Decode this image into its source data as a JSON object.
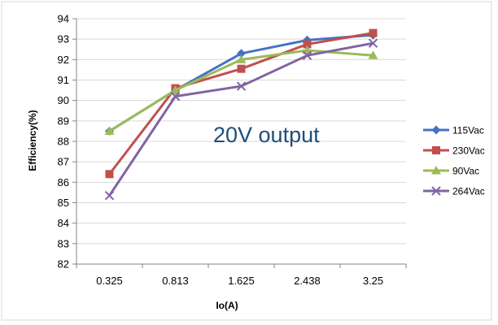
{
  "chart_data": {
    "type": "line",
    "title": "",
    "xlabel": "Io(A)",
    "ylabel": "Efficiency(%)",
    "categories": [
      "0.325",
      "0.813",
      "1.625",
      "2.438",
      "3.25"
    ],
    "ylim": [
      82,
      94
    ],
    "ytick_step": 1,
    "grid": "horizontal",
    "legend_position": "right",
    "annotation": "20V output",
    "annotation_color": "#1f4e79",
    "series": [
      {
        "name": "115Vac",
        "color": "#4472c4",
        "marker": "diamond",
        "values": [
          88.5,
          90.5,
          92.3,
          92.95,
          93.2
        ]
      },
      {
        "name": "230Vac",
        "color": "#c0504d",
        "marker": "square",
        "values": [
          86.4,
          90.6,
          91.55,
          92.75,
          93.3
        ]
      },
      {
        "name": "90Vac",
        "color": "#9bbb59",
        "marker": "triangle",
        "values": [
          88.5,
          90.5,
          92.0,
          92.45,
          92.2
        ]
      },
      {
        "name": "264Vac",
        "color": "#8064a2",
        "marker": "x",
        "values": [
          85.35,
          90.2,
          90.7,
          92.2,
          92.8
        ]
      }
    ]
  }
}
